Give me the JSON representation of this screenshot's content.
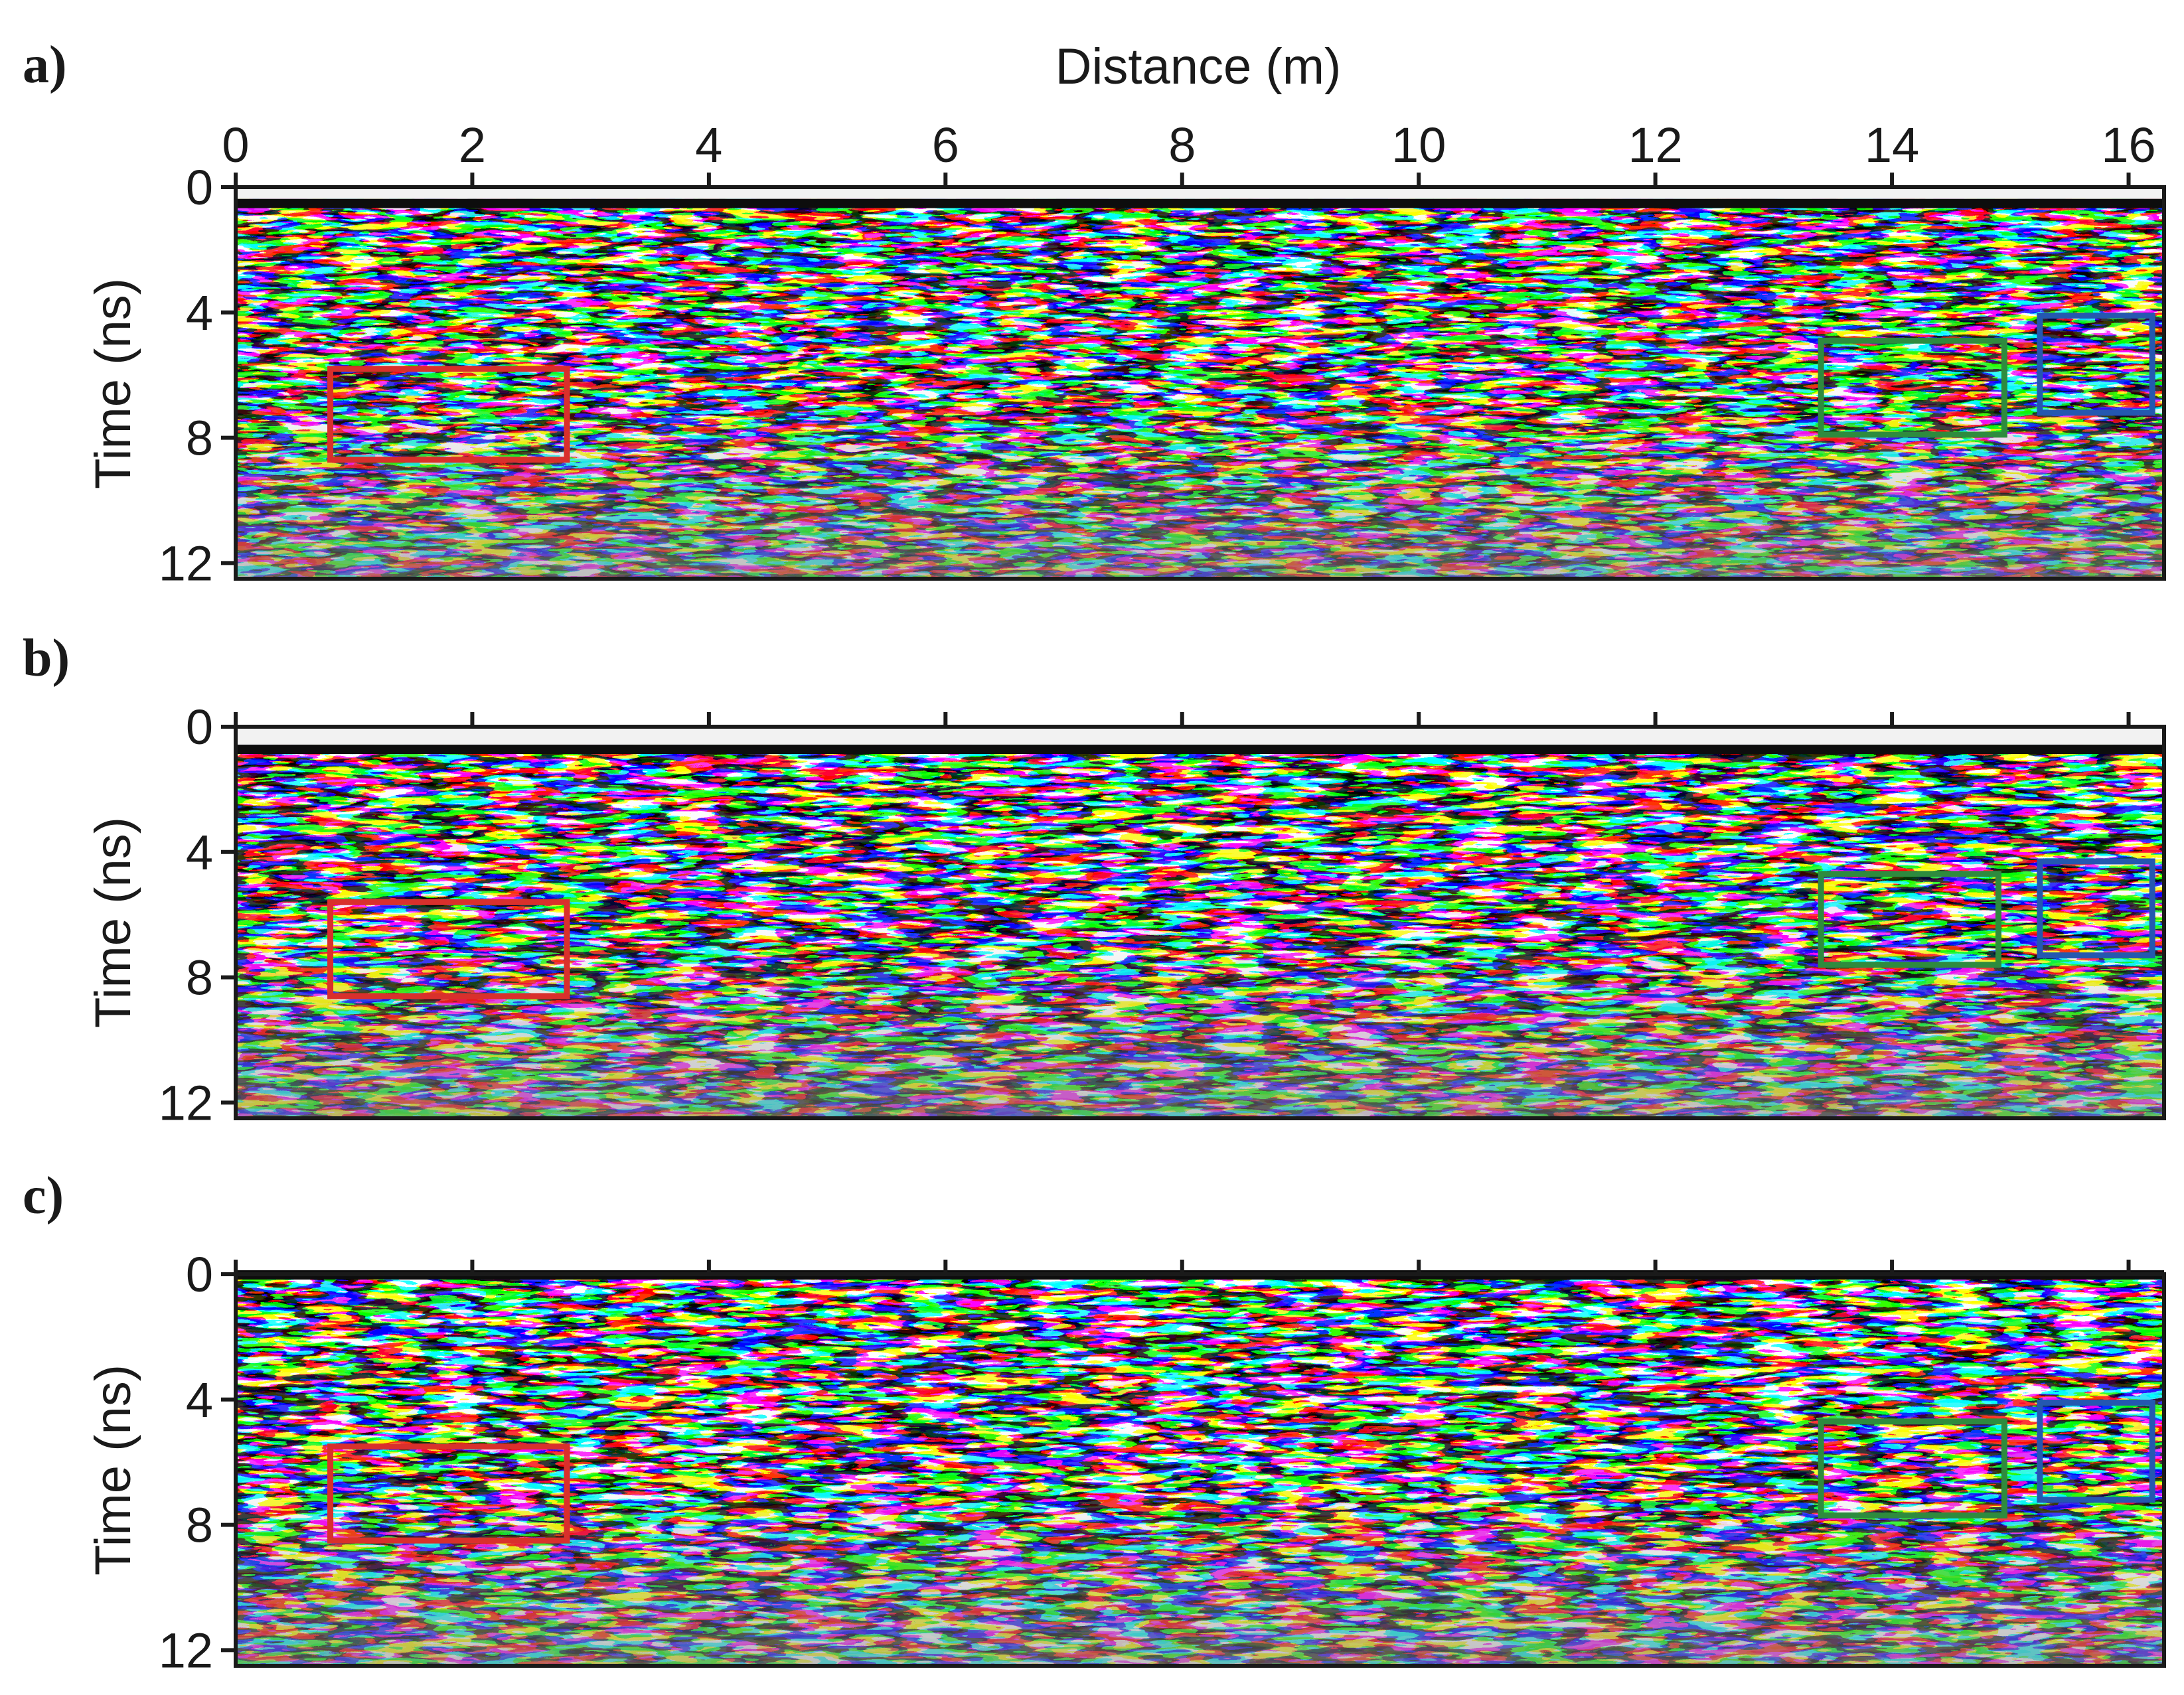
{
  "chart_data": {
    "type": "heatmap",
    "colormap": "grayscale (black-white)",
    "xlabel": "Distance (m)",
    "ylabel": "Time (ns)",
    "xlim": [
      0,
      16.3
    ],
    "ylim": [
      12.5,
      0
    ],
    "x_ticks": [
      0,
      2,
      4,
      6,
      8,
      10,
      12,
      14,
      16
    ],
    "y_ticks": [
      0,
      4,
      8,
      12
    ],
    "x_tick_labels": [
      "0",
      "2",
      "4",
      "6",
      "8",
      "10",
      "12",
      "14",
      "16"
    ],
    "y_tick_labels": [
      "0",
      "4",
      "8",
      "12"
    ],
    "panels": [
      {
        "label": "a)",
        "direct_wave_time_ns": 0.5,
        "show_x_tick_labels": true,
        "boxes": [
          {
            "color": "#d9302c",
            "x": [
              0.8,
              2.8
            ],
            "t": [
              5.8,
              8.7
            ]
          },
          {
            "color": "#2e8b3e",
            "x": [
              13.4,
              14.95
            ],
            "t": [
              4.9,
              7.9
            ]
          },
          {
            "color": "#2458b0",
            "x": [
              15.25,
              16.2
            ],
            "t": [
              4.1,
              7.2
            ]
          }
        ]
      },
      {
        "label": "b)",
        "direct_wave_time_ns": 0.7,
        "show_x_tick_labels": false,
        "boxes": [
          {
            "color": "#d9302c",
            "x": [
              0.8,
              2.8
            ],
            "t": [
              5.6,
              8.6
            ]
          },
          {
            "color": "#2e8b3e",
            "x": [
              13.4,
              14.9
            ],
            "t": [
              4.7,
              7.6
            ]
          },
          {
            "color": "#2458b0",
            "x": [
              15.25,
              16.2
            ],
            "t": [
              4.3,
              7.3
            ]
          }
        ]
      },
      {
        "label": "c)",
        "direct_wave_time_ns": 0.0,
        "show_x_tick_labels": false,
        "boxes": [
          {
            "color": "#d9302c",
            "x": [
              0.8,
              2.8
            ],
            "t": [
              5.5,
              8.5
            ]
          },
          {
            "color": "#2e8b3e",
            "x": [
              13.4,
              14.95
            ],
            "t": [
              4.7,
              7.7
            ]
          },
          {
            "color": "#2458b0",
            "x": [
              15.25,
              16.2
            ],
            "t": [
              4.1,
              7.2
            ]
          }
        ]
      }
    ]
  }
}
